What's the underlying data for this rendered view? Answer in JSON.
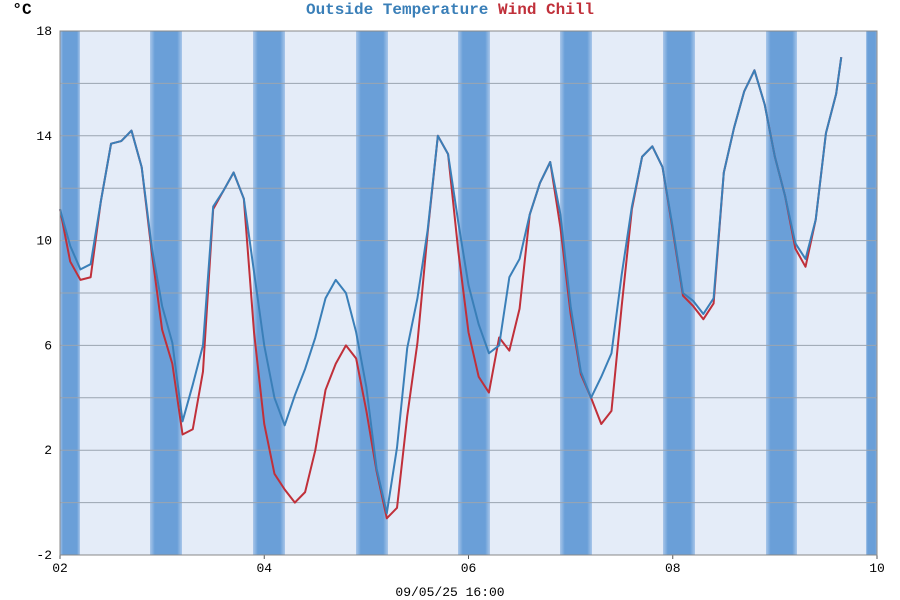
{
  "chart_data": {
    "type": "line",
    "ylabel": "°C",
    "xlabel": "09/05/25 16:00",
    "x": [
      2.0,
      2.1,
      2.2,
      2.3,
      2.4,
      2.5,
      2.6,
      2.7,
      2.8,
      2.9,
      3.0,
      3.1,
      3.2,
      3.3,
      3.4,
      3.5,
      3.6,
      3.7,
      3.8,
      3.9,
      4.0,
      4.1,
      4.2,
      4.3,
      4.4,
      4.5,
      4.6,
      4.7,
      4.8,
      4.9,
      5.0,
      5.1,
      5.2,
      5.3,
      5.4,
      5.5,
      5.6,
      5.7,
      5.8,
      5.9,
      6.0,
      6.1,
      6.2,
      6.3,
      6.4,
      6.5,
      6.6,
      6.7,
      6.8,
      6.9,
      7.0,
      7.1,
      7.2,
      7.3,
      7.4,
      7.5,
      7.6,
      7.7,
      7.8,
      7.9,
      8.0,
      8.1,
      8.2,
      8.3,
      8.4,
      8.5,
      8.6,
      8.7,
      8.8,
      8.9,
      9.0,
      9.1,
      9.2,
      9.3,
      9.4,
      9.5,
      9.6,
      9.65
    ],
    "series": [
      {
        "name": "Outside Temperature",
        "color": "#3a7fb8",
        "values": [
          11.2,
          9.8,
          8.9,
          9.1,
          11.5,
          13.7,
          13.8,
          14.2,
          12.8,
          9.7,
          7.5,
          6.1,
          3.1,
          4.5,
          6.0,
          11.3,
          11.9,
          12.6,
          11.6,
          8.8,
          6.0,
          4.0,
          2.95,
          4.1,
          5.1,
          6.3,
          7.8,
          8.5,
          8.0,
          6.5,
          4.4,
          1.3,
          -0.4,
          2.1,
          5.9,
          7.8,
          10.4,
          14.0,
          13.3,
          10.7,
          8.3,
          6.8,
          5.7,
          6.0,
          8.6,
          9.3,
          11.0,
          12.2,
          13.0,
          11.0,
          7.5,
          5.0,
          4.0,
          4.8,
          5.7,
          8.7,
          11.3,
          13.2,
          13.6,
          12.8,
          10.5,
          8.0,
          7.7,
          7.2,
          7.8,
          12.6,
          14.3,
          15.7,
          16.5,
          15.2,
          13.2,
          11.7,
          9.9,
          9.3,
          10.8,
          14.1,
          15.6,
          17.0
        ]
      },
      {
        "name": "Wind Chill",
        "color": "#c0303a",
        "values": [
          11.2,
          9.2,
          8.5,
          8.6,
          11.5,
          13.7,
          13.8,
          14.2,
          12.8,
          9.5,
          6.6,
          5.3,
          2.6,
          2.8,
          5.0,
          11.2,
          11.9,
          12.6,
          11.6,
          6.5,
          3.0,
          1.1,
          0.5,
          0.0,
          0.4,
          2.0,
          4.3,
          5.3,
          6.0,
          5.5,
          3.5,
          1.2,
          -0.6,
          -0.2,
          3.3,
          6.1,
          10.3,
          14.0,
          13.3,
          9.6,
          6.5,
          4.8,
          4.2,
          6.3,
          5.8,
          7.4,
          11.0,
          12.2,
          13.0,
          10.5,
          7.2,
          4.9,
          4.0,
          3.0,
          3.5,
          7.5,
          11.2,
          13.2,
          13.6,
          12.8,
          10.4,
          7.9,
          7.5,
          7.0,
          7.6,
          12.6,
          14.3,
          15.7,
          16.5,
          15.2,
          13.2,
          11.7,
          9.7,
          9.0,
          10.8,
          14.1,
          15.6,
          17.0
        ]
      }
    ],
    "xlim": [
      2,
      10
    ],
    "xticks": [
      {
        "value": 2,
        "label": "02"
      },
      {
        "value": 4,
        "label": "04"
      },
      {
        "value": 6,
        "label": "06"
      },
      {
        "value": 8,
        "label": "08"
      },
      {
        "value": 10,
        "label": "10"
      }
    ],
    "ylim": [
      -2,
      18
    ],
    "yticks": [
      -2,
      2,
      6,
      10,
      14,
      18
    ],
    "yminor": [
      0,
      4,
      8,
      12,
      16
    ],
    "grid": true
  }
}
